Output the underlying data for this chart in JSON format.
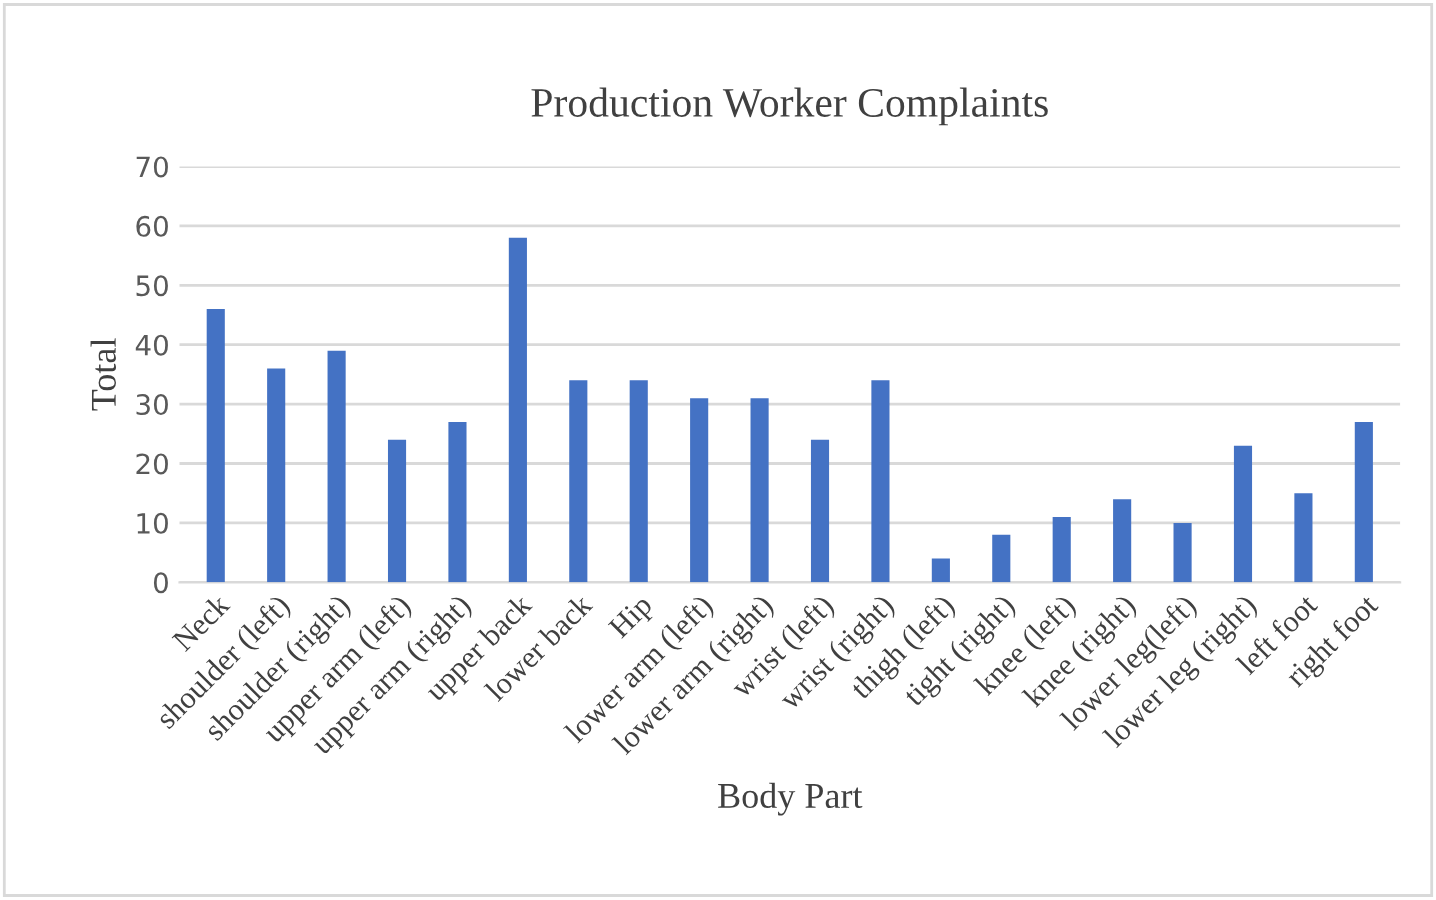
{
  "chart_data": {
    "type": "bar",
    "title": "Production Worker Complaints",
    "xlabel": "Body Part",
    "ylabel": "Total",
    "categories": [
      "Neck",
      "shoulder (left)",
      "shoulder (right)",
      "upper arm (left)",
      "upper arm (right)",
      "upper back",
      "lower back",
      "Hip",
      "lower arm (left)",
      "lower arm (right)",
      "wrist (left)",
      "wrist (right)",
      "thigh (left)",
      "tight (right)",
      "knee (left)",
      "knee (right)",
      "lower leg(left)",
      "lower leg (right)",
      "left foot",
      "right foot"
    ],
    "values": [
      46,
      36,
      39,
      24,
      27,
      58,
      34,
      34,
      31,
      31,
      24,
      34,
      4,
      8,
      11,
      14,
      10,
      23,
      15,
      27
    ],
    "color": "#4472c4",
    "ylim": [
      0,
      70
    ],
    "yticks": [
      0,
      10,
      20,
      30,
      40,
      50,
      60,
      70
    ],
    "grid": "y"
  }
}
